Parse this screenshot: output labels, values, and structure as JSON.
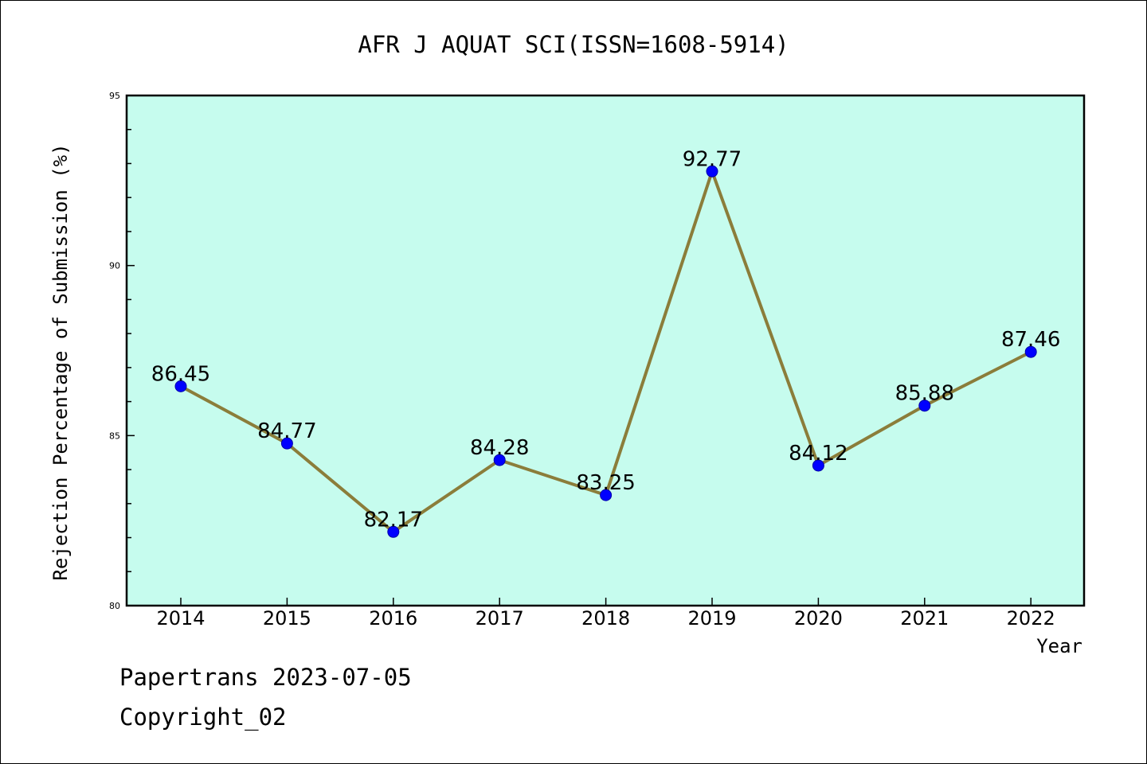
{
  "chart_data": {
    "type": "line",
    "title": "AFR J AQUAT SCI(ISSN=1608-5914)",
    "xlabel": "Year",
    "ylabel": "Rejection Percentage of Submission (%)",
    "categories": [
      "2014",
      "2015",
      "2016",
      "2017",
      "2018",
      "2019",
      "2020",
      "2021",
      "2022"
    ],
    "values": [
      86.45,
      84.77,
      82.17,
      84.28,
      83.25,
      92.77,
      84.12,
      85.88,
      87.46
    ],
    "value_labels": [
      "86.45",
      "84.77",
      "82.17",
      "84.28",
      "83.25",
      "92.77",
      "84.12",
      "85.88",
      "87.46"
    ],
    "ylim": [
      80,
      95
    ],
    "yticks": [
      80,
      85,
      90,
      95
    ],
    "ytick_labels": [
      "80",
      "85",
      "90",
      "95"
    ],
    "grid": false,
    "colors": {
      "plot_background": "#c6fcee",
      "line": "#8b7d3a",
      "marker": "#0000ff"
    }
  },
  "footer": {
    "line1": "Papertrans 2023-07-05",
    "line2": "Copyright_02"
  }
}
